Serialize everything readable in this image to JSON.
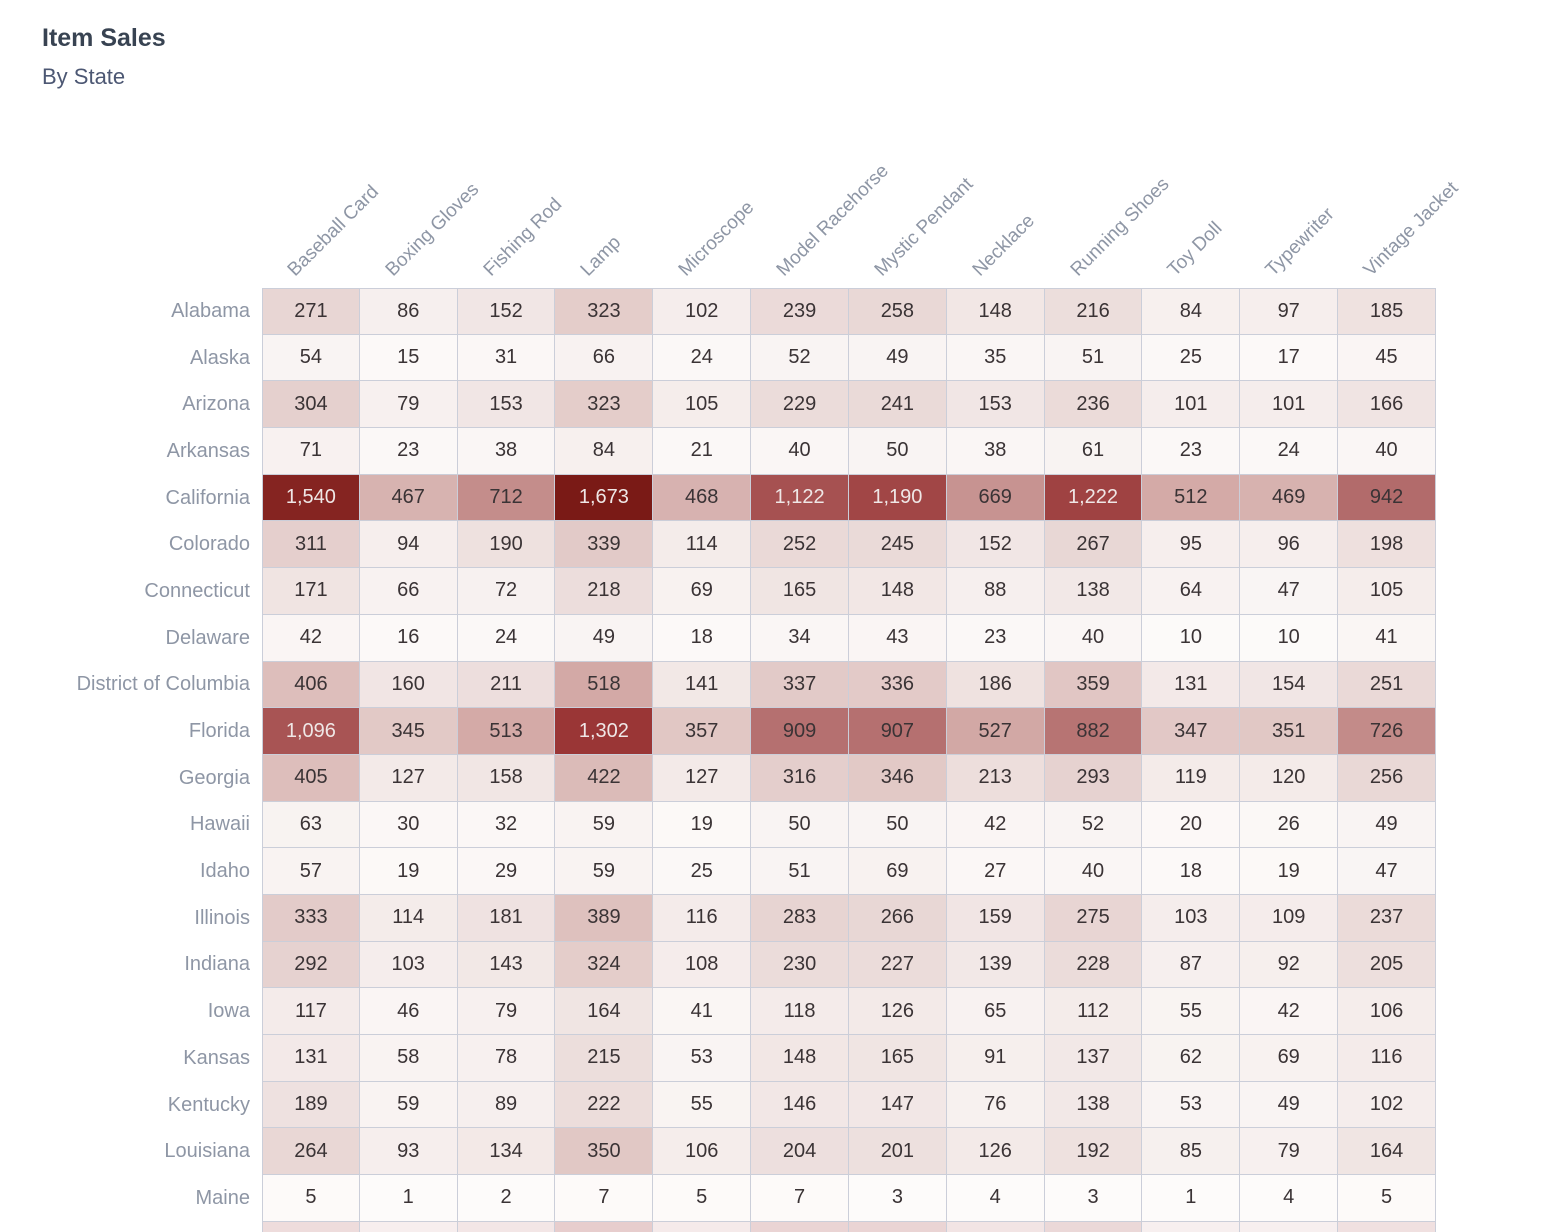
{
  "header": {
    "title": "Item Sales",
    "subtitle": "By State"
  },
  "chart_data": {
    "type": "heatmap",
    "columns": [
      "Baseball Card",
      "Boxing Gloves",
      "Fishing Rod",
      "Lamp",
      "Microscope",
      "Model Racehorse",
      "Mystic Pendant",
      "Necklace",
      "Running Shoes",
      "Toy Doll",
      "Typewriter",
      "Vintage Jacket"
    ],
    "rows": [
      {
        "state": "Alabama",
        "values": [
          271,
          86,
          152,
          323,
          102,
          239,
          258,
          148,
          216,
          84,
          97,
          185
        ]
      },
      {
        "state": "Alaska",
        "values": [
          54,
          15,
          31,
          66,
          24,
          52,
          49,
          35,
          51,
          25,
          17,
          45
        ]
      },
      {
        "state": "Arizona",
        "values": [
          304,
          79,
          153,
          323,
          105,
          229,
          241,
          153,
          236,
          101,
          101,
          166
        ]
      },
      {
        "state": "Arkansas",
        "values": [
          71,
          23,
          38,
          84,
          21,
          40,
          50,
          38,
          61,
          23,
          24,
          40
        ]
      },
      {
        "state": "California",
        "values": [
          1540,
          467,
          712,
          1673,
          468,
          1122,
          1190,
          669,
          1222,
          512,
          469,
          942
        ]
      },
      {
        "state": "Colorado",
        "values": [
          311,
          94,
          190,
          339,
          114,
          252,
          245,
          152,
          267,
          95,
          96,
          198
        ]
      },
      {
        "state": "Connecticut",
        "values": [
          171,
          66,
          72,
          218,
          69,
          165,
          148,
          88,
          138,
          64,
          47,
          105
        ]
      },
      {
        "state": "Delaware",
        "values": [
          42,
          16,
          24,
          49,
          18,
          34,
          43,
          23,
          40,
          10,
          10,
          41
        ]
      },
      {
        "state": "District of Columbia",
        "values": [
          406,
          160,
          211,
          518,
          141,
          337,
          336,
          186,
          359,
          131,
          154,
          251
        ]
      },
      {
        "state": "Florida",
        "values": [
          1096,
          345,
          513,
          1302,
          357,
          909,
          907,
          527,
          882,
          347,
          351,
          726
        ]
      },
      {
        "state": "Georgia",
        "values": [
          405,
          127,
          158,
          422,
          127,
          316,
          346,
          213,
          293,
          119,
          120,
          256
        ]
      },
      {
        "state": "Hawaii",
        "values": [
          63,
          30,
          32,
          59,
          19,
          50,
          50,
          42,
          52,
          20,
          26,
          49
        ]
      },
      {
        "state": "Idaho",
        "values": [
          57,
          19,
          29,
          59,
          25,
          51,
          69,
          27,
          40,
          18,
          19,
          47
        ]
      },
      {
        "state": "Illinois",
        "values": [
          333,
          114,
          181,
          389,
          116,
          283,
          266,
          159,
          275,
          103,
          109,
          237
        ]
      },
      {
        "state": "Indiana",
        "values": [
          292,
          103,
          143,
          324,
          108,
          230,
          227,
          139,
          228,
          87,
          92,
          205
        ]
      },
      {
        "state": "Iowa",
        "values": [
          117,
          46,
          79,
          164,
          41,
          118,
          126,
          65,
          112,
          55,
          42,
          106
        ]
      },
      {
        "state": "Kansas",
        "values": [
          131,
          58,
          78,
          215,
          53,
          148,
          165,
          91,
          137,
          62,
          69,
          116
        ]
      },
      {
        "state": "Kentucky",
        "values": [
          189,
          59,
          89,
          222,
          55,
          146,
          147,
          76,
          138,
          53,
          49,
          102
        ]
      },
      {
        "state": "Louisiana",
        "values": [
          264,
          93,
          134,
          350,
          106,
          204,
          201,
          126,
          192,
          85,
          79,
          164
        ]
      },
      {
        "state": "Maine",
        "values": [
          5,
          1,
          2,
          7,
          5,
          7,
          3,
          4,
          3,
          1,
          4,
          5
        ]
      }
    ],
    "value_range": [
      1,
      1673
    ],
    "color_scale": {
      "stops": [
        [
          0.0,
          "#fdfbfa"
        ],
        [
          0.162,
          "#e8d6d4"
        ],
        [
          0.31,
          "#d3a9a6"
        ],
        [
          0.563,
          "#b26b6b"
        ],
        [
          0.778,
          "#9a3636"
        ],
        [
          1.0,
          "#7a1a16"
        ]
      ],
      "light_text_threshold": 0.62,
      "dark_text_color": "#3a3335",
      "light_text_color": "#efe7e6"
    },
    "partial_next_row_colors": [
      "#eedcdc",
      "#f7eeee",
      "#f3e6e6",
      "#e7cdcd",
      "#f5eaea",
      "#ead4d4",
      "#ead4d4",
      "#f2e4e4",
      "#ebd8d8",
      "#f7efef",
      "#f7efef",
      "#f0e0e0"
    ],
    "legend": "none",
    "xlabel": "",
    "ylabel": ""
  }
}
